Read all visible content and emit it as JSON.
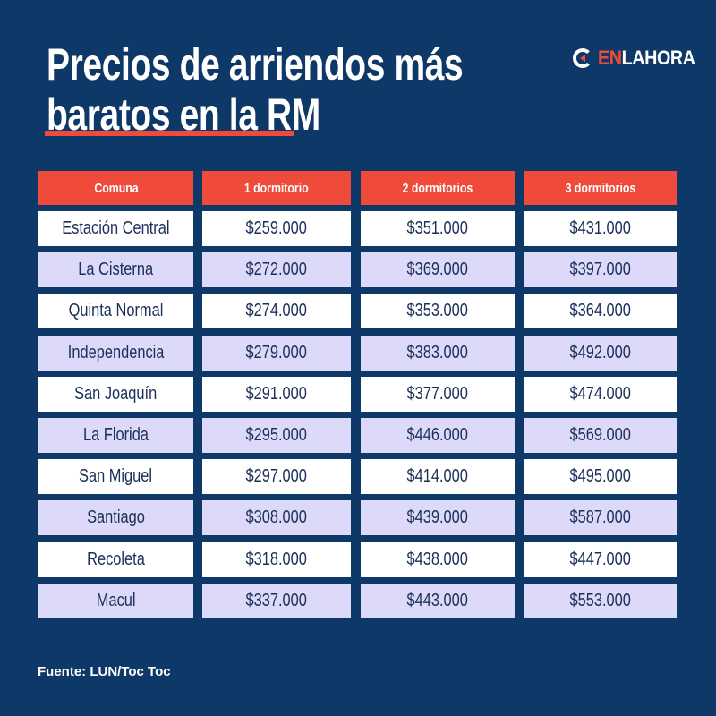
{
  "title_line1": "Precios de arriendos más",
  "title_line2": "baratos en la RM",
  "logo": {
    "part1": "EN",
    "part2": "LAHORA"
  },
  "colors": {
    "background": "#0e3867",
    "accent": "#f04a3a",
    "row_alt": "#dcdaf8",
    "text": "#1b2f5a"
  },
  "source": "Fuente: LUN/Toc Toc",
  "chart_data": {
    "type": "table",
    "columns": [
      "Comuna",
      "1 dormitorio",
      "2 dormitorios",
      "3 dormitorios"
    ],
    "rows": [
      [
        "Estación Central",
        "$259.000",
        "$351.000",
        "$431.000"
      ],
      [
        "La Cisterna",
        "$272.000",
        "$369.000",
        "$397.000"
      ],
      [
        "Quinta Normal",
        "$274.000",
        "$353.000",
        "$364.000"
      ],
      [
        "Independencia",
        "$279.000",
        "$383.000",
        "$492.000"
      ],
      [
        "San Joaquín",
        "$291.000",
        "$377.000",
        "$474.000"
      ],
      [
        "La Florida",
        "$295.000",
        "$446.000",
        "$569.000"
      ],
      [
        "San Miguel",
        "$297.000",
        "$414.000",
        "$495.000"
      ],
      [
        "Santiago",
        "$308.000",
        "$439.000",
        "$587.000"
      ],
      [
        "Recoleta",
        "$318.000",
        "$438.000",
        "$447.000"
      ],
      [
        "Macul",
        "$337.000",
        "$443.000",
        "$553.000"
      ]
    ]
  }
}
